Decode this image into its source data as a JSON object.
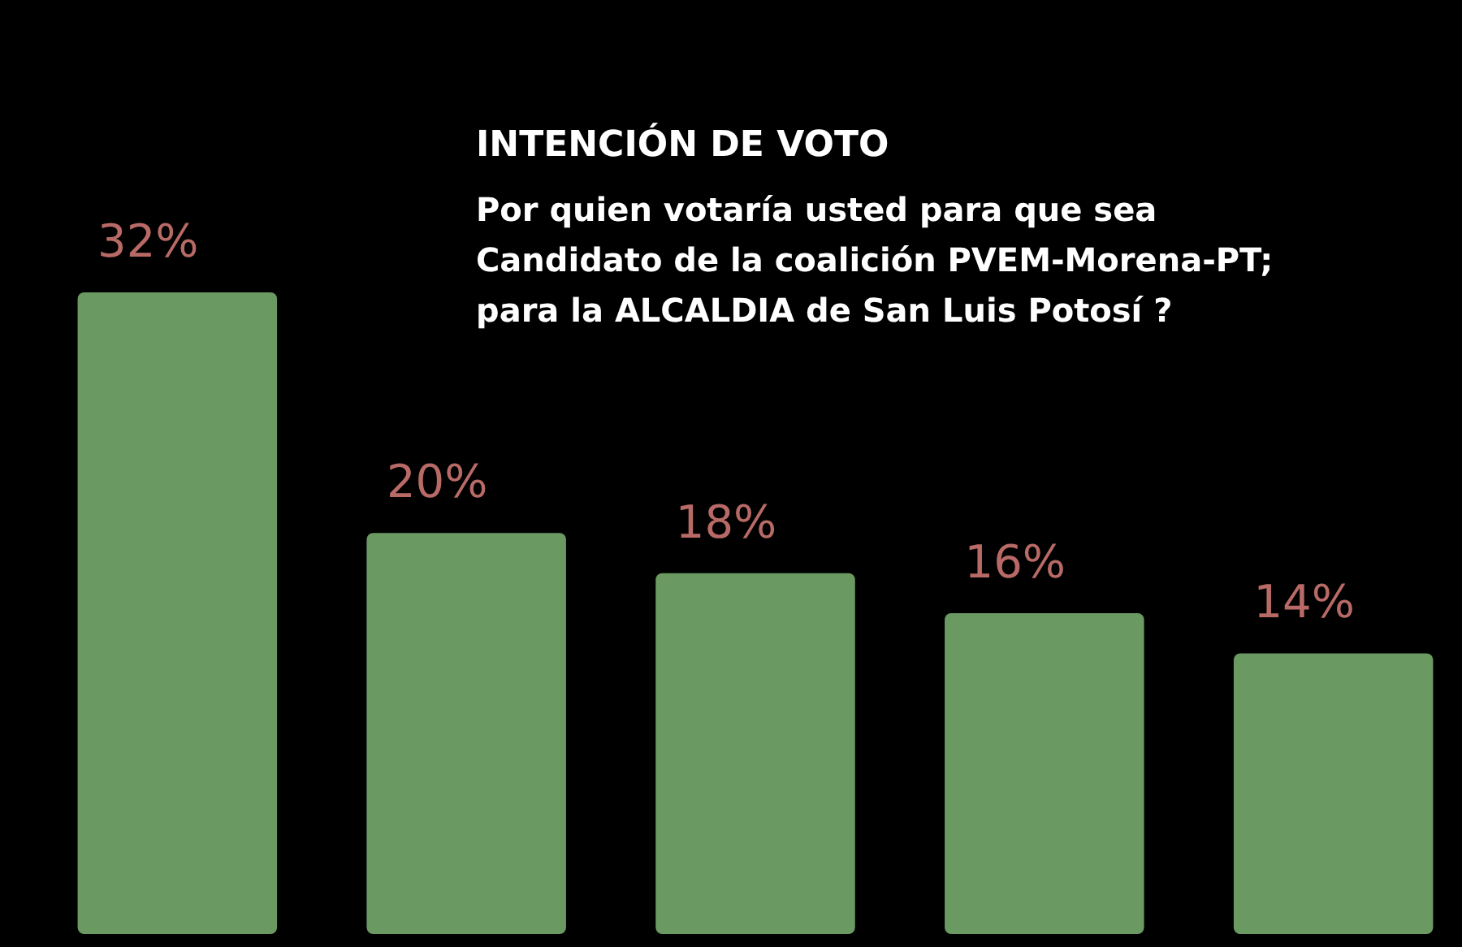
{
  "chart_data": {
    "type": "bar",
    "title": "INTENCIÓN DE VOTO",
    "subtitle": "Por quien votaría usted para que sea\nCandidato de la coalición PVEM-Morena-PT;\npara la ALCALDIA de San Luis Potosí ?",
    "categories": [
      null,
      null,
      null,
      null,
      null
    ],
    "values": [
      32,
      20,
      18,
      16,
      14
    ],
    "value_labels": [
      "32%",
      "20%",
      "18%",
      "16%",
      "14%"
    ],
    "color": "#6a9a62"
  }
}
